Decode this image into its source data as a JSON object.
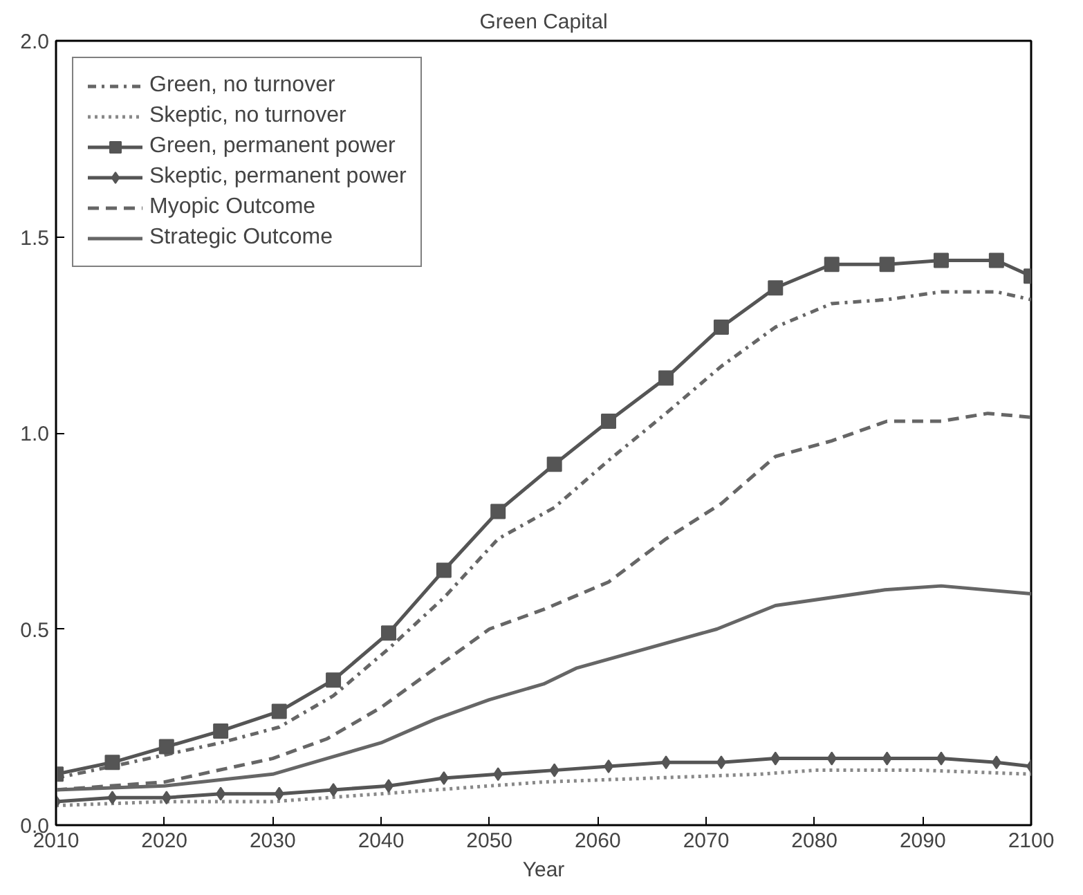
{
  "chart_data": {
    "type": "line",
    "title": "Green Capital",
    "xlabel": "Year",
    "xlim": [
      2010,
      2100
    ],
    "xticks": [
      2010,
      2020,
      2030,
      2040,
      2050,
      2060,
      2070,
      2080,
      2090,
      2100
    ],
    "ylim": [
      0,
      2
    ],
    "yticks": [
      {
        "value": 0,
        "label": "0.0"
      },
      {
        "value": 0.5,
        "label": "0.5"
      },
      {
        "value": 1,
        "label": "1.0"
      },
      {
        "value": 1.5,
        "label": "1.5"
      },
      {
        "value": 2,
        "label": "2.0"
      }
    ],
    "grid": false,
    "legend": "top left",
    "series": [
      {
        "name": "Green, no turnover",
        "color": "#666666",
        "line_style": "dashdot",
        "marker": "none",
        "x": [
          2010,
          2015.2,
          2020.2,
          2025.2,
          2030.6,
          2035.6,
          2040.7,
          2045.8,
          2050.8,
          2056.0,
          2061.0,
          2066.3,
          2071.4,
          2076.4,
          2081.6,
          2086.7,
          2091.7,
          2096.8,
          2100
        ],
        "values": [
          0.12,
          0.15,
          0.18,
          0.21,
          0.25,
          0.33,
          0.45,
          0.58,
          0.73,
          0.81,
          0.93,
          1.05,
          1.17,
          1.27,
          1.33,
          1.34,
          1.36,
          1.36,
          1.34
        ]
      },
      {
        "name": "Skeptic, no turnover",
        "color": "#888888",
        "line_style": "dotted",
        "marker": "none",
        "x": [
          2010,
          2020,
          2030,
          2040,
          2050,
          2055,
          2065,
          2075,
          2080,
          2090,
          2100
        ],
        "values": [
          0.05,
          0.06,
          0.06,
          0.08,
          0.1,
          0.11,
          0.12,
          0.13,
          0.14,
          0.14,
          0.13
        ]
      },
      {
        "name": "Green, permanent power",
        "color": "#555555",
        "line_style": "solid",
        "marker": "square",
        "x": [
          2010,
          2015.2,
          2020.2,
          2025.2,
          2030.6,
          2035.6,
          2040.7,
          2045.8,
          2050.8,
          2056.0,
          2061.0,
          2066.3,
          2071.4,
          2076.4,
          2081.6,
          2086.7,
          2091.7,
          2096.8,
          2100
        ],
        "values": [
          0.13,
          0.16,
          0.2,
          0.24,
          0.29,
          0.37,
          0.49,
          0.65,
          0.8,
          0.92,
          1.03,
          1.14,
          1.27,
          1.37,
          1.43,
          1.43,
          1.44,
          1.44,
          1.4
        ]
      },
      {
        "name": "Skeptic, permanent power",
        "color": "#555555",
        "line_style": "solid",
        "marker": "diamond",
        "x": [
          2010,
          2015.2,
          2020.2,
          2025.2,
          2030.6,
          2035.6,
          2040.7,
          2045.8,
          2050.8,
          2056.0,
          2061.0,
          2066.3,
          2071.4,
          2076.4,
          2081.6,
          2086.7,
          2091.7,
          2096.8,
          2100
        ],
        "values": [
          0.06,
          0.07,
          0.07,
          0.08,
          0.08,
          0.09,
          0.1,
          0.12,
          0.13,
          0.14,
          0.15,
          0.16,
          0.16,
          0.17,
          0.17,
          0.17,
          0.17,
          0.16,
          0.15
        ]
      },
      {
        "name": "Myopic Outcome",
        "color": "#666666",
        "line_style": "dashed",
        "marker": "none",
        "x": [
          2010,
          2020,
          2030,
          2035,
          2040,
          2045,
          2050,
          2055,
          2061,
          2066.3,
          2071.4,
          2076.4,
          2081.6,
          2086.7,
          2091.7,
          2096,
          2100
        ],
        "values": [
          0.09,
          0.11,
          0.17,
          0.22,
          0.3,
          0.4,
          0.5,
          0.55,
          0.62,
          0.73,
          0.82,
          0.94,
          0.98,
          1.03,
          1.03,
          1.05,
          1.04
        ]
      },
      {
        "name": "Strategic Outcome",
        "color": "#666666",
        "line_style": "solid",
        "marker": "none",
        "x": [
          2010,
          2020,
          2030,
          2035,
          2040,
          2045,
          2050,
          2055,
          2058,
          2071,
          2076.4,
          2086.5,
          2091.7,
          2100
        ],
        "values": [
          0.09,
          0.1,
          0.13,
          0.17,
          0.21,
          0.27,
          0.32,
          0.36,
          0.4,
          0.5,
          0.56,
          0.6,
          0.61,
          0.59
        ]
      }
    ]
  }
}
